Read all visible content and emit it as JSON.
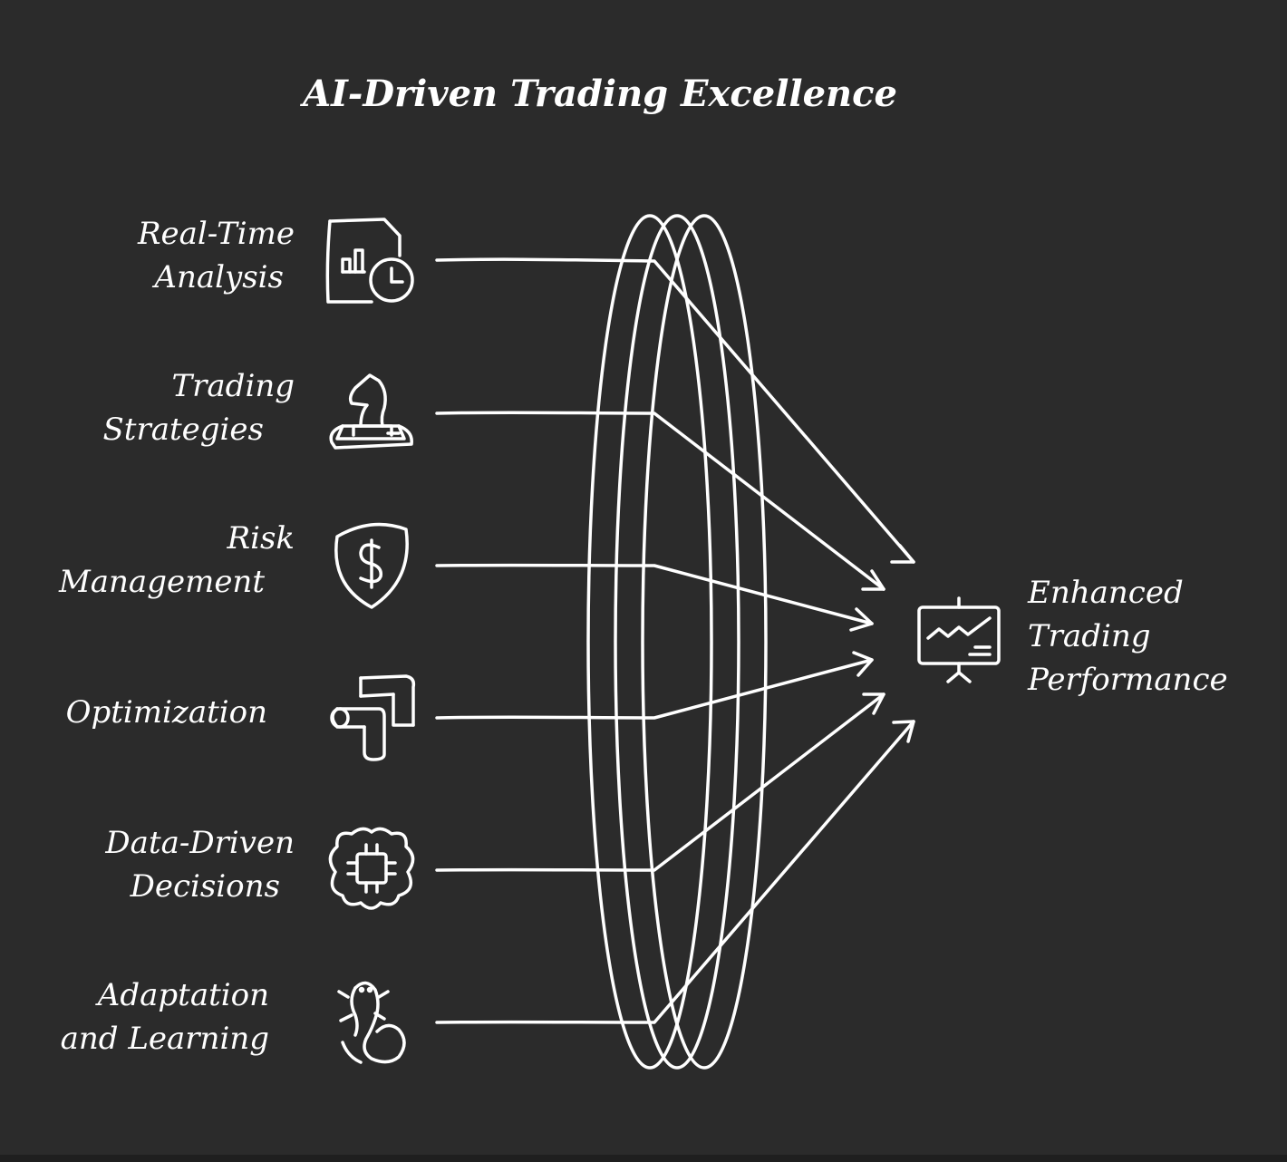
{
  "title": "AI-Driven Trading Excellence",
  "inputs": [
    {
      "lines": [
        "Real-Time",
        "Analysis"
      ],
      "icon": "chart-clock-icon"
    },
    {
      "lines": [
        "Trading",
        "Strategies"
      ],
      "icon": "chess-knight-icon"
    },
    {
      "lines": [
        "Risk",
        "Management"
      ],
      "icon": "shield-dollar-icon"
    },
    {
      "lines": [
        "Optimization",
        ""
      ],
      "icon": "pipe-icon"
    },
    {
      "lines": [
        "Data-Driven",
        "Decisions"
      ],
      "icon": "brain-chip-icon"
    },
    {
      "lines": [
        "Adaptation",
        "and Learning"
      ],
      "icon": "salamander-icon"
    }
  ],
  "output": {
    "lines": [
      "Enhanced",
      "Trading",
      "Performance"
    ],
    "icon": "presentation-chart-icon"
  },
  "colors": {
    "background": "#2b2b2b",
    "stroke": "#ffffff"
  }
}
